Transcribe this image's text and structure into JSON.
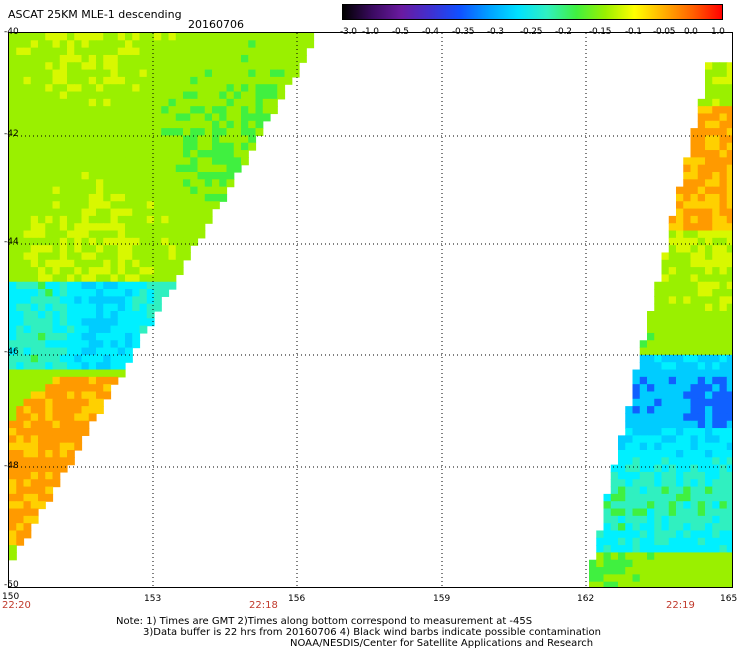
{
  "header": {
    "title": "ASCAT 25KM MLE-1 descending",
    "date": "20160706"
  },
  "colorbar": {
    "labels": [
      "-3.0",
      "-1.0",
      "-0.5",
      "-0.4",
      "-0.35",
      "-0.3",
      "-0.25",
      "-0.2",
      "-0.15",
      "-0.1",
      "-0.05",
      "0.0",
      "1.0"
    ],
    "colors": [
      "#000000",
      "#3a0a60",
      "#6a1aa0",
      "#4030d0",
      "#1050ff",
      "#00a0ff",
      "#00e0ff",
      "#30f0c0",
      "#40f040",
      "#9af000",
      "#ffff00",
      "#ffb000",
      "#ff6000",
      "#ff0000"
    ]
  },
  "map": {
    "lon_ticks": [
      "150",
      "153",
      "156",
      "159",
      "162",
      "165"
    ],
    "lat_ticks": [
      "-40",
      "-42",
      "-44",
      "-46",
      "-48",
      "-50"
    ],
    "lon_range": [
      150,
      165
    ],
    "lat_range": [
      -50,
      -40
    ],
    "swath_times": [
      "22:20",
      "22:18",
      "22:19"
    ]
  },
  "footer": {
    "line1": "Note: 1) Times are GMT 2)Times along bottom correspond to measurement at -45S",
    "line2": "3)Data buffer is 22 hrs from 20160706 4) Black wind barbs indicate possible contamination",
    "line3": "NOAA/NESDIS/Center for Satellite Applications and Research"
  }
}
